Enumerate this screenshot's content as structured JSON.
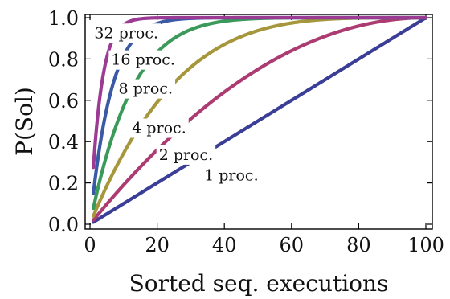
{
  "chart_data": {
    "type": "line",
    "xlabel": "Sorted seq. executions",
    "ylabel": "P(Sol)",
    "xlim": [
      0,
      100
    ],
    "ylim": [
      0,
      1
    ],
    "grid": false,
    "x_ticks": [
      "0",
      "20",
      "40",
      "60",
      "80",
      "100"
    ],
    "y_ticks": [
      "0.0",
      "0.2",
      "0.4",
      "0.6",
      "0.8",
      "1.0"
    ],
    "x_tick_values": [
      0,
      20,
      40,
      60,
      80,
      100
    ],
    "y_tick_values": [
      0,
      0.2,
      0.4,
      0.6,
      0.8,
      1.0
    ],
    "x_start": 1,
    "series": [
      {
        "name": "1 proc.",
        "processors": 1,
        "color": "#3b3e96",
        "label_pos": {
          "x": 34,
          "y": 0.235
        }
      },
      {
        "name": "2 proc.",
        "processors": 2,
        "color": "#ac3b72",
        "label_pos": {
          "x": 20.5,
          "y": 0.335
        }
      },
      {
        "name": "4 proc.",
        "processors": 4,
        "color": "#a6973c",
        "label_pos": {
          "x": 12.5,
          "y": 0.465
        }
      },
      {
        "name": "8 proc.",
        "processors": 8,
        "color": "#3b9a5a",
        "label_pos": {
          "x": 8.5,
          "y": 0.655
        }
      },
      {
        "name": "16 proc.",
        "processors": 16,
        "color": "#3a5aa6",
        "label_pos": {
          "x": 6.3,
          "y": 0.795
        }
      },
      {
        "name": "32 proc.",
        "processors": 32,
        "color": "#9c3b94",
        "label_pos": {
          "x": 1.3,
          "y": 0.925
        }
      }
    ]
  }
}
